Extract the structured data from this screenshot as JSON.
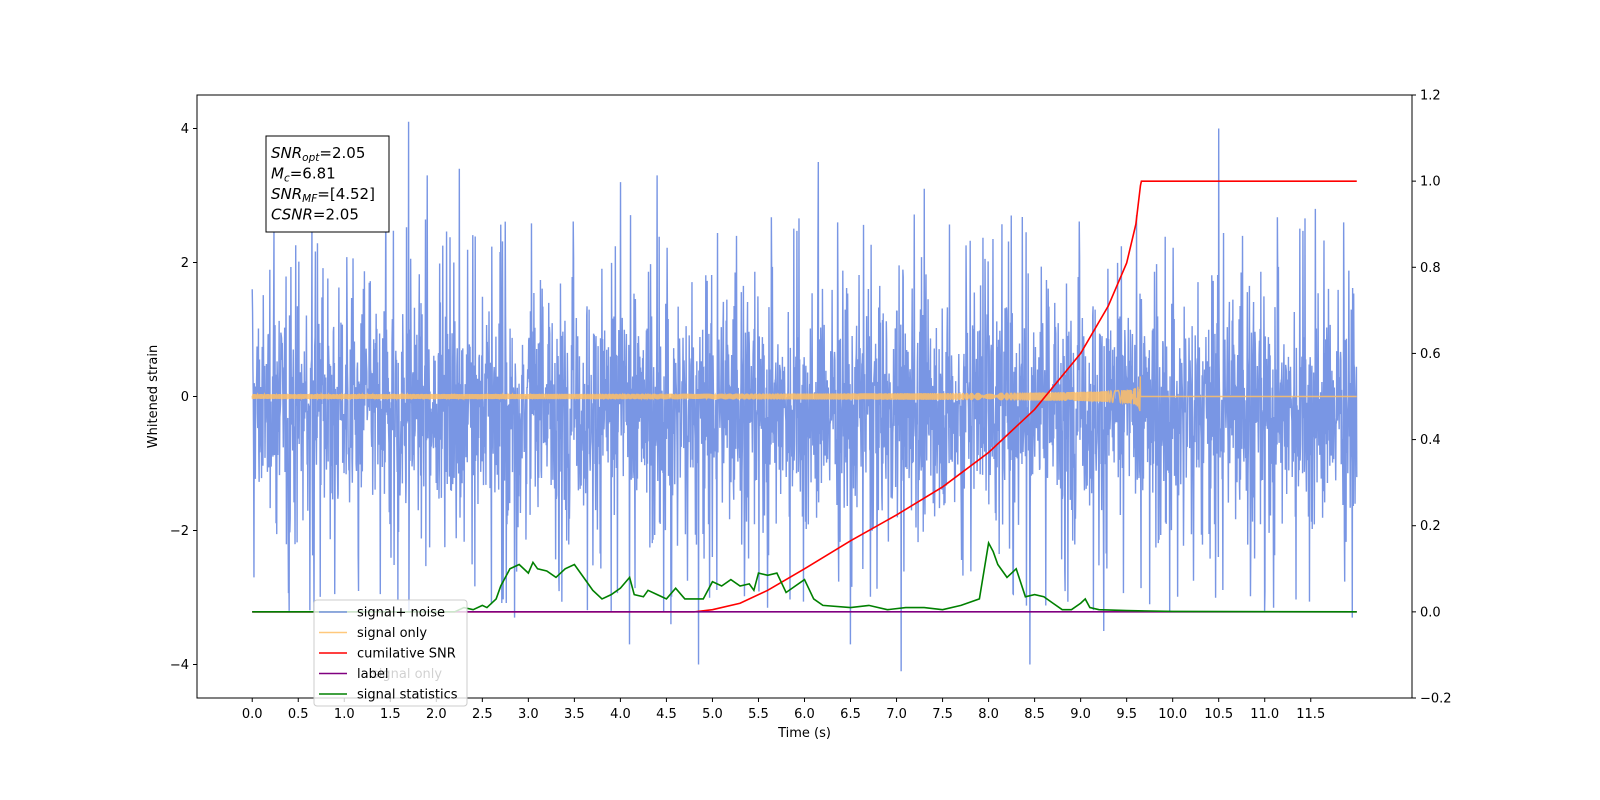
{
  "chart_data": {
    "type": "line",
    "xlabel": "Time (s)",
    "ylabel": "Whitened strain",
    "xlim": [
      -0.6,
      12.6
    ],
    "ylim": [
      -4.5,
      4.5
    ],
    "y2lim": [
      -0.2,
      1.2
    ],
    "x_ticks": [
      0.0,
      0.5,
      1.0,
      1.5,
      2.0,
      2.5,
      3.0,
      3.5,
      4.0,
      4.5,
      5.0,
      5.5,
      6.0,
      6.5,
      7.0,
      7.5,
      8.0,
      8.5,
      9.0,
      9.5,
      10.0,
      10.5,
      11.0,
      11.5
    ],
    "x_tick_labels": [
      "0.0",
      "0.5",
      "1.0",
      "1.5",
      "2.0",
      "2.5",
      "3.0",
      "3.5",
      "4.0",
      "4.5",
      "5.0",
      "5.5",
      "6.0",
      "6.5",
      "7.0",
      "7.5",
      "8.0",
      "8.5",
      "9.0",
      "9.5",
      "10.0",
      "10.5",
      "11.0",
      "11.5"
    ],
    "y_ticks": [
      -4,
      -2,
      0,
      2,
      4
    ],
    "y_tick_labels": [
      "−4",
      "−2",
      "0",
      "2",
      "4"
    ],
    "y2_ticks": [
      -0.2,
      0.0,
      0.2,
      0.4,
      0.6,
      0.8,
      1.0,
      1.2
    ],
    "y2_tick_labels": [
      "−0.2",
      "0.0",
      "0.2",
      "0.4",
      "0.6",
      "0.8",
      "1.0",
      "1.2"
    ],
    "grid": false,
    "legend_position": "lower-left",
    "annotation_position": "upper-left",
    "series": [
      {
        "name": "signal+ noise",
        "axis": "left",
        "color": "#6688e0",
        "style": "noise",
        "x_range": [
          0.0,
          12.0
        ],
        "typical_amplitude": [
          -1.9,
          1.6
        ],
        "peaks": [
          {
            "x": 0.0,
            "y": 1.6
          },
          {
            "x": 0.02,
            "y": -2.7
          },
          {
            "x": 0.4,
            "y": -3.2
          },
          {
            "x": 0.65,
            "y": 2.9
          },
          {
            "x": 1.45,
            "y": 3.2
          },
          {
            "x": 1.7,
            "y": 4.1
          },
          {
            "x": 1.9,
            "y": 3.3
          },
          {
            "x": 2.25,
            "y": 3.4
          },
          {
            "x": 2.6,
            "y": -3.1
          },
          {
            "x": 2.85,
            "y": -3.3
          },
          {
            "x": 3.9,
            "y": -3.2
          },
          {
            "x": 4.0,
            "y": 3.2
          },
          {
            "x": 4.1,
            "y": -3.7
          },
          {
            "x": 4.4,
            "y": 3.3
          },
          {
            "x": 4.55,
            "y": -3.4
          },
          {
            "x": 4.85,
            "y": -4.0
          },
          {
            "x": 6.15,
            "y": 3.5
          },
          {
            "x": 6.5,
            "y": -3.7
          },
          {
            "x": 7.05,
            "y": -4.1
          },
          {
            "x": 7.3,
            "y": 3.1
          },
          {
            "x": 8.45,
            "y": -4.0
          },
          {
            "x": 9.25,
            "y": -3.5
          },
          {
            "x": 9.75,
            "y": -3.1
          },
          {
            "x": 10.5,
            "y": 4.0
          },
          {
            "x": 11.0,
            "y": -3.2
          },
          {
            "x": 11.55,
            "y": 2.8
          },
          {
            "x": 11.95,
            "y": -3.3
          },
          {
            "x": 11.98,
            "y": -1.6
          }
        ]
      },
      {
        "name": "signal only",
        "axis": "left",
        "color": "#ffbf66",
        "style": "chirp",
        "x_range": [
          0.0,
          12.0
        ],
        "merger_time": 9.65,
        "max_amplitude": 0.3
      },
      {
        "name": "cumilative SNR",
        "axis": "right",
        "color": "#ff0000",
        "x": [
          0.0,
          4.8,
          5.0,
          5.3,
          5.6,
          6.0,
          6.5,
          7.0,
          7.5,
          8.0,
          8.5,
          9.0,
          9.3,
          9.5,
          9.6,
          9.65,
          9.66,
          12.0
        ],
        "y": [
          0.0,
          0.0,
          0.005,
          0.02,
          0.05,
          0.1,
          0.165,
          0.225,
          0.29,
          0.37,
          0.47,
          0.6,
          0.71,
          0.81,
          0.9,
          0.99,
          1.0,
          1.0
        ]
      },
      {
        "name": "label",
        "axis": "right",
        "color": "#800080",
        "x": [
          0.0,
          12.0
        ],
        "y": [
          0.0,
          0.0
        ]
      },
      {
        "name": "signal statistics",
        "axis": "right",
        "color": "#008000",
        "x": [
          0.0,
          2.2,
          2.3,
          2.4,
          2.5,
          2.55,
          2.65,
          2.7,
          2.8,
          2.9,
          3.0,
          3.05,
          3.1,
          3.2,
          3.3,
          3.4,
          3.5,
          3.6,
          3.7,
          3.8,
          3.9,
          4.0,
          4.1,
          4.15,
          4.25,
          4.3,
          4.4,
          4.45,
          4.5,
          4.6,
          4.7,
          4.8,
          4.9,
          5.0,
          5.1,
          5.2,
          5.3,
          5.4,
          5.45,
          5.5,
          5.6,
          5.7,
          5.8,
          5.9,
          6.0,
          6.1,
          6.2,
          6.5,
          6.7,
          6.9,
          7.1,
          7.3,
          7.5,
          7.7,
          7.9,
          8.0,
          8.05,
          8.1,
          8.2,
          8.3,
          8.4,
          8.5,
          8.6,
          8.7,
          8.8,
          8.9,
          9.0,
          9.05,
          9.1,
          9.2,
          9.5,
          10.0,
          12.0
        ],
        "y": [
          0.0,
          0.0,
          0.01,
          0.005,
          0.015,
          0.01,
          0.03,
          0.06,
          0.1,
          0.11,
          0.09,
          0.115,
          0.1,
          0.095,
          0.08,
          0.1,
          0.11,
          0.08,
          0.05,
          0.03,
          0.04,
          0.055,
          0.08,
          0.04,
          0.035,
          0.05,
          0.04,
          0.035,
          0.03,
          0.055,
          0.03,
          0.03,
          0.03,
          0.07,
          0.06,
          0.075,
          0.06,
          0.065,
          0.05,
          0.09,
          0.085,
          0.09,
          0.045,
          0.06,
          0.075,
          0.03,
          0.015,
          0.01,
          0.015,
          0.005,
          0.01,
          0.01,
          0.005,
          0.015,
          0.03,
          0.16,
          0.14,
          0.11,
          0.08,
          0.1,
          0.035,
          0.04,
          0.035,
          0.02,
          0.005,
          0.005,
          0.02,
          0.03,
          0.01,
          0.005,
          0.003,
          0.001,
          0.0
        ]
      }
    ],
    "legend": [
      "signal+ noise",
      "signal only",
      "cumilative SNR",
      "label",
      "signal statistics"
    ],
    "legend_overlap_text": "signal only",
    "annotation": [
      {
        "base": "SNR",
        "sub": "opt",
        "value": "=2.05"
      },
      {
        "base": "M",
        "sub": "c",
        "value": "=6.81"
      },
      {
        "base": "SNR",
        "sub": "MF",
        "value": "=[4.52]"
      },
      {
        "base": "CSNR",
        "sub": "",
        "value": "=2.05"
      }
    ]
  }
}
